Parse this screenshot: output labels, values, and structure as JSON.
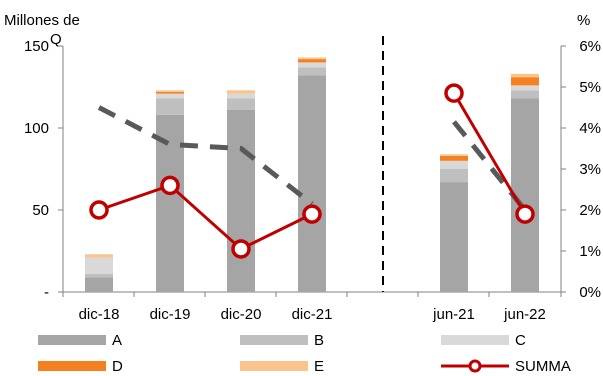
{
  "chart_data": {
    "type": "bar",
    "categories": [
      "dic-18",
      "dic-19",
      "dic-20",
      "dic-21",
      "jun-21",
      "jun-22"
    ],
    "ylabel_left": "Millones de Q",
    "ylabel_right": "%",
    "ylim_left": [
      0,
      150
    ],
    "ylim_right": [
      0,
      6
    ],
    "yticks_left": [
      "-",
      "50",
      "100",
      "150"
    ],
    "yticks_right": [
      "0%",
      "1%",
      "2%",
      "3%",
      "4%",
      "5%",
      "6%"
    ],
    "stacked_series": [
      {
        "name": "A",
        "color": "#a5a5a5",
        "values": [
          9,
          108,
          111,
          132,
          67,
          118
        ]
      },
      {
        "name": "B",
        "color": "#bfbfbf",
        "values": [
          2,
          10,
          7,
          5,
          8,
          5
        ]
      },
      {
        "name": "C",
        "color": "#d9d9d9",
        "values": [
          10,
          3,
          3,
          3,
          5,
          3
        ]
      },
      {
        "name": "D",
        "color": "#f4801f",
        "values": [
          0,
          1,
          0,
          2,
          3,
          5
        ]
      },
      {
        "name": "E",
        "color": "#fbc48c",
        "values": [
          2,
          1,
          2,
          1,
          1,
          2
        ]
      }
    ],
    "line_series": [
      {
        "name": "SUMMA",
        "color": "#c00000",
        "axis": "right",
        "values": [
          2.0,
          2.6,
          1.05,
          1.9,
          4.85,
          1.9
        ]
      }
    ],
    "dashed_trend": {
      "color": "#595959",
      "axis": "right",
      "segments": [
        [
          4.5,
          3.6,
          3.5,
          2.15
        ],
        [
          4.15,
          2.0
        ]
      ]
    },
    "divider": "between dic-21 and jun-21",
    "legend": [
      "A",
      "B",
      "C",
      "D",
      "E",
      "SUMMA"
    ],
    "legend_placement": "bottom",
    "grid": false
  }
}
